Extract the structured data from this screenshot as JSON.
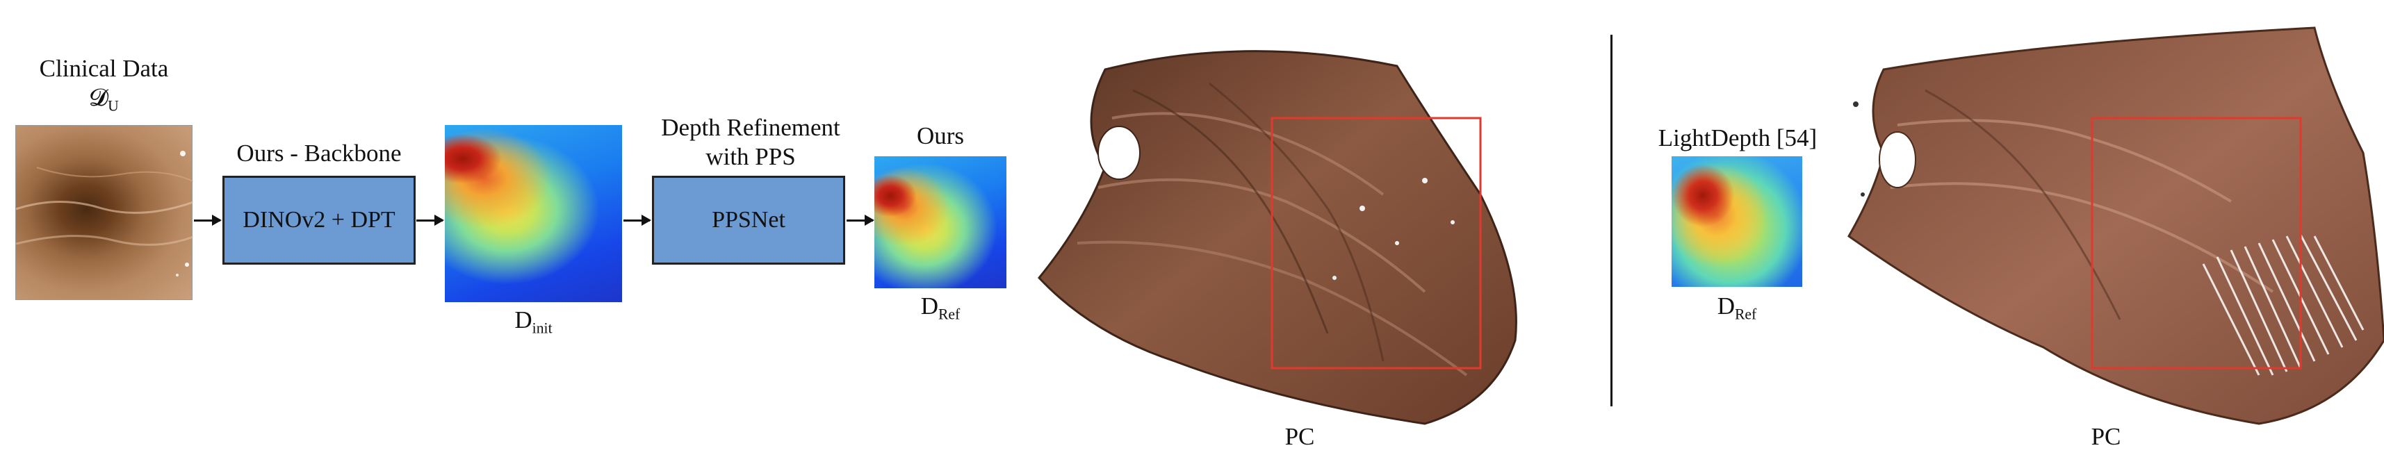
{
  "input": {
    "title": "Clinical Data",
    "symbol_main": "𝓓",
    "symbol_sub": "U"
  },
  "backbone": {
    "title": "Ours - Backbone",
    "box_label": "DINOv2 + DPT"
  },
  "init_depth": {
    "label_main": "D",
    "label_sub": "init"
  },
  "refinement": {
    "title_line1": "Depth Refinement",
    "title_line2": "with PPS",
    "box_label": "PPSNet"
  },
  "ours": {
    "title": "Ours",
    "label_main": "D",
    "label_sub": "Ref"
  },
  "pc_ours": {
    "label": "PC"
  },
  "lightdepth": {
    "title": "LightDepth [54]",
    "label_main": "D",
    "label_sub": "Ref"
  },
  "pc_light": {
    "label": "PC"
  },
  "colors": {
    "box_fill": "#6c9bd3",
    "highlight_box": "#e03a2e",
    "tissue": "#8a5a3c"
  }
}
